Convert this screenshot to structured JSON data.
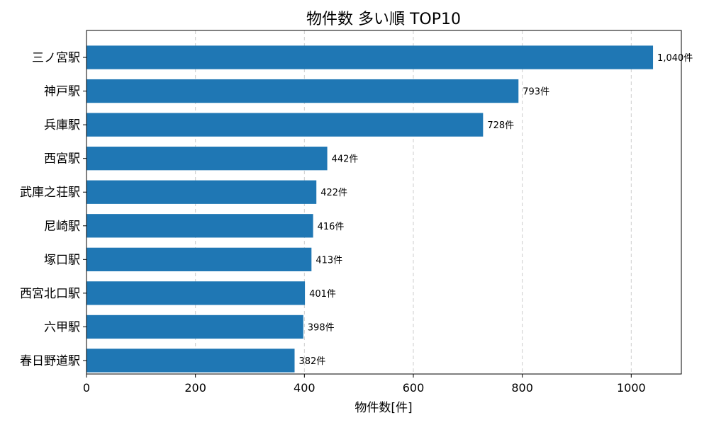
{
  "chart_data": {
    "type": "bar",
    "orientation": "horizontal",
    "title": "物件数 多い順 TOP10",
    "xlabel": "物件数[件]",
    "ylabel": "",
    "xlim": [
      0,
      1092
    ],
    "xticks": [
      0,
      200,
      400,
      600,
      800,
      1000
    ],
    "grid": "x-dashed",
    "color": "#1f77b4",
    "categories": [
      "三ノ宮駅",
      "神戸駅",
      "兵庫駅",
      "西宮駅",
      "武庫之荘駅",
      "尼崎駅",
      "塚口駅",
      "西宮北口駅",
      "六甲駅",
      "春日野道駅"
    ],
    "values": [
      1040,
      793,
      728,
      442,
      422,
      416,
      413,
      401,
      398,
      382
    ],
    "data_labels": [
      "1,040件",
      "793件",
      "728件",
      "442件",
      "422件",
      "416件",
      "413件",
      "401件",
      "398件",
      "382件"
    ]
  }
}
